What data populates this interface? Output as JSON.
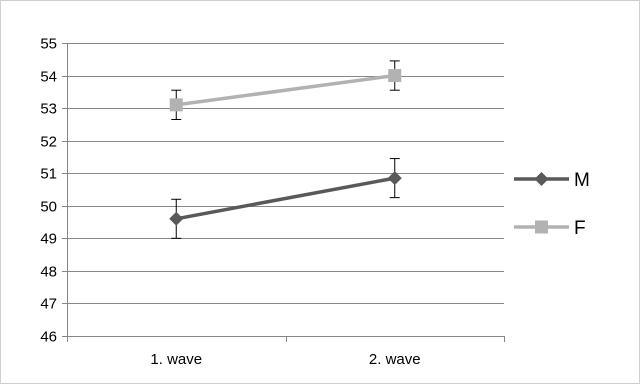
{
  "chart_data": {
    "type": "line",
    "title": "",
    "xlabel": "",
    "ylabel": "",
    "categories": [
      "1. wave",
      "2. wave"
    ],
    "ylim": [
      46,
      55
    ],
    "ytick_step": 1,
    "grid": true,
    "legend_position": "right",
    "series": [
      {
        "name": "M",
        "values": [
          49.6,
          50.85
        ],
        "error": [
          0.6,
          0.6
        ],
        "color": "#595959",
        "marker": "diamond"
      },
      {
        "name": "F",
        "values": [
          53.1,
          54.0
        ],
        "error": [
          0.45,
          0.45
        ],
        "color": "#b2b2b2",
        "marker": "square"
      }
    ]
  }
}
